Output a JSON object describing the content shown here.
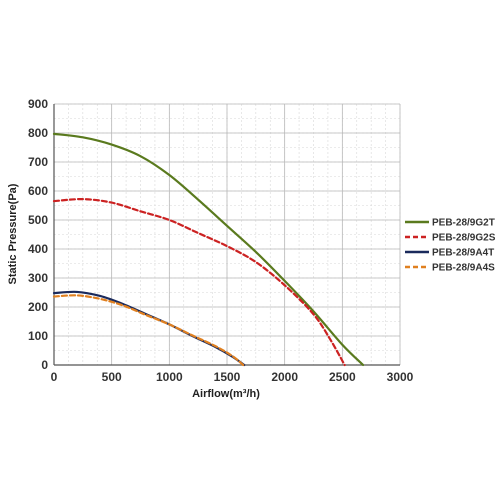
{
  "chart_data": {
    "type": "line",
    "title": "",
    "xlabel": "Airflow(m³/h)",
    "ylabel": "Static Pressure(Pa)",
    "xlim": [
      0,
      3000
    ],
    "ylim": [
      0,
      900
    ],
    "xticks": [
      0,
      500,
      1000,
      1500,
      2000,
      2500,
      3000
    ],
    "yticks": [
      0,
      100,
      200,
      300,
      400,
      500,
      600,
      700,
      800,
      900
    ],
    "grid": true,
    "legend": "right",
    "series": [
      {
        "name": "PEB-28/9G2T",
        "color": "#5a7a1e",
        "style": "solid",
        "points": [
          [
            0,
            797
          ],
          [
            250,
            785
          ],
          [
            500,
            760
          ],
          [
            750,
            720
          ],
          [
            1000,
            655
          ],
          [
            1250,
            570
          ],
          [
            1500,
            480
          ],
          [
            1750,
            390
          ],
          [
            2000,
            290
          ],
          [
            2250,
            185
          ],
          [
            2500,
            70
          ],
          [
            2680,
            0
          ]
        ]
      },
      {
        "name": "PEB-28/9G2S",
        "color": "#cc2222",
        "style": "dashed",
        "points": [
          [
            0,
            565
          ],
          [
            250,
            572
          ],
          [
            500,
            560
          ],
          [
            750,
            530
          ],
          [
            1000,
            500
          ],
          [
            1250,
            455
          ],
          [
            1500,
            410
          ],
          [
            1750,
            355
          ],
          [
            2000,
            275
          ],
          [
            2250,
            175
          ],
          [
            2400,
            85
          ],
          [
            2520,
            0
          ]
        ]
      },
      {
        "name": "PEB-28/9A4T",
        "color": "#1a2a5c",
        "style": "solid",
        "points": [
          [
            0,
            248
          ],
          [
            200,
            252
          ],
          [
            400,
            238
          ],
          [
            600,
            210
          ],
          [
            800,
            175
          ],
          [
            1000,
            140
          ],
          [
            1200,
            100
          ],
          [
            1400,
            62
          ],
          [
            1550,
            28
          ],
          [
            1650,
            0
          ]
        ]
      },
      {
        "name": "PEB-28/9A4S",
        "color": "#e08020",
        "style": "dashed",
        "points": [
          [
            0,
            236
          ],
          [
            200,
            240
          ],
          [
            400,
            228
          ],
          [
            600,
            205
          ],
          [
            800,
            172
          ],
          [
            1000,
            140
          ],
          [
            1200,
            102
          ],
          [
            1400,
            65
          ],
          [
            1550,
            30
          ],
          [
            1640,
            0
          ]
        ]
      }
    ]
  }
}
